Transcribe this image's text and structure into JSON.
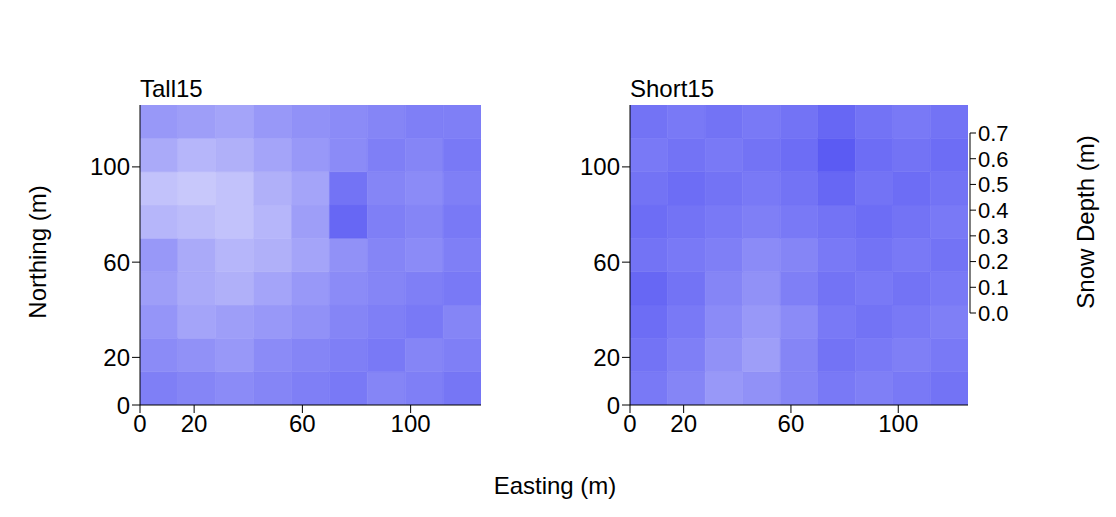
{
  "chart_data": [
    {
      "type": "heatmap",
      "title": "Tall15",
      "x_edges": [
        0,
        14,
        28,
        42,
        56,
        70,
        84,
        98,
        112,
        126
      ],
      "y_edges": [
        0,
        14,
        28,
        42,
        56,
        70,
        84,
        98,
        112,
        126
      ],
      "cells": [
        [
          0.42,
          0.4,
          0.38,
          0.4,
          0.42,
          0.44,
          0.4,
          0.42,
          0.45
        ],
        [
          0.38,
          0.36,
          0.34,
          0.38,
          0.4,
          0.42,
          0.44,
          0.4,
          0.42
        ],
        [
          0.35,
          0.3,
          0.32,
          0.34,
          0.36,
          0.4,
          0.42,
          0.44,
          0.4
        ],
        [
          0.32,
          0.28,
          0.26,
          0.3,
          0.34,
          0.38,
          0.4,
          0.42,
          0.44
        ],
        [
          0.34,
          0.28,
          0.24,
          0.26,
          0.3,
          0.36,
          0.4,
          0.38,
          0.42
        ],
        [
          0.24,
          0.22,
          0.2,
          0.24,
          0.32,
          0.5,
          0.42,
          0.4,
          0.44
        ],
        [
          0.2,
          0.18,
          0.2,
          0.26,
          0.3,
          0.46,
          0.4,
          0.38,
          0.42
        ],
        [
          0.28,
          0.24,
          0.26,
          0.3,
          0.34,
          0.38,
          0.42,
          0.4,
          0.44
        ],
        [
          0.34,
          0.32,
          0.3,
          0.34,
          0.36,
          0.38,
          0.4,
          0.42,
          0.42
        ]
      ],
      "xlim": [
        0,
        126
      ],
      "ylim": [
        0,
        126
      ],
      "xticks": [
        0,
        20,
        60,
        100
      ],
      "yticks": [
        0,
        20,
        60,
        100
      ]
    },
    {
      "type": "heatmap",
      "title": "Short15",
      "x_edges": [
        0,
        14,
        28,
        42,
        56,
        70,
        84,
        98,
        112,
        126
      ],
      "y_edges": [
        0,
        14,
        28,
        42,
        56,
        70,
        84,
        98,
        112,
        126
      ],
      "cells": [
        [
          0.44,
          0.4,
          0.34,
          0.36,
          0.4,
          0.44,
          0.42,
          0.44,
          0.46
        ],
        [
          0.46,
          0.42,
          0.36,
          0.32,
          0.4,
          0.46,
          0.44,
          0.42,
          0.44
        ],
        [
          0.48,
          0.44,
          0.38,
          0.34,
          0.38,
          0.44,
          0.46,
          0.44,
          0.42
        ],
        [
          0.5,
          0.46,
          0.4,
          0.36,
          0.42,
          0.46,
          0.44,
          0.46,
          0.44
        ],
        [
          0.46,
          0.44,
          0.42,
          0.38,
          0.4,
          0.44,
          0.46,
          0.44,
          0.46
        ],
        [
          0.48,
          0.46,
          0.44,
          0.42,
          0.44,
          0.46,
          0.48,
          0.46,
          0.44
        ],
        [
          0.46,
          0.48,
          0.46,
          0.44,
          0.46,
          0.5,
          0.46,
          0.48,
          0.46
        ],
        [
          0.44,
          0.46,
          0.44,
          0.46,
          0.48,
          0.54,
          0.48,
          0.46,
          0.48
        ],
        [
          0.46,
          0.44,
          0.46,
          0.44,
          0.46,
          0.5,
          0.46,
          0.44,
          0.46
        ]
      ],
      "xlim": [
        0,
        126
      ],
      "ylim": [
        0,
        126
      ],
      "xticks": [
        0,
        20,
        60,
        100
      ],
      "yticks": [
        0,
        20,
        60,
        100
      ]
    }
  ],
  "xlabel": "Easting (m)",
  "ylabel": "Northing (m)",
  "colorbar": {
    "title": "Snow Depth (m)",
    "range": [
      0,
      0.7
    ],
    "ticks": [
      {
        "value": 0,
        "label": "0.0"
      },
      0.1,
      0.2,
      0.3,
      0.4,
      0.5,
      0.6,
      0.7
    ],
    "color": "#2a2af0"
  }
}
